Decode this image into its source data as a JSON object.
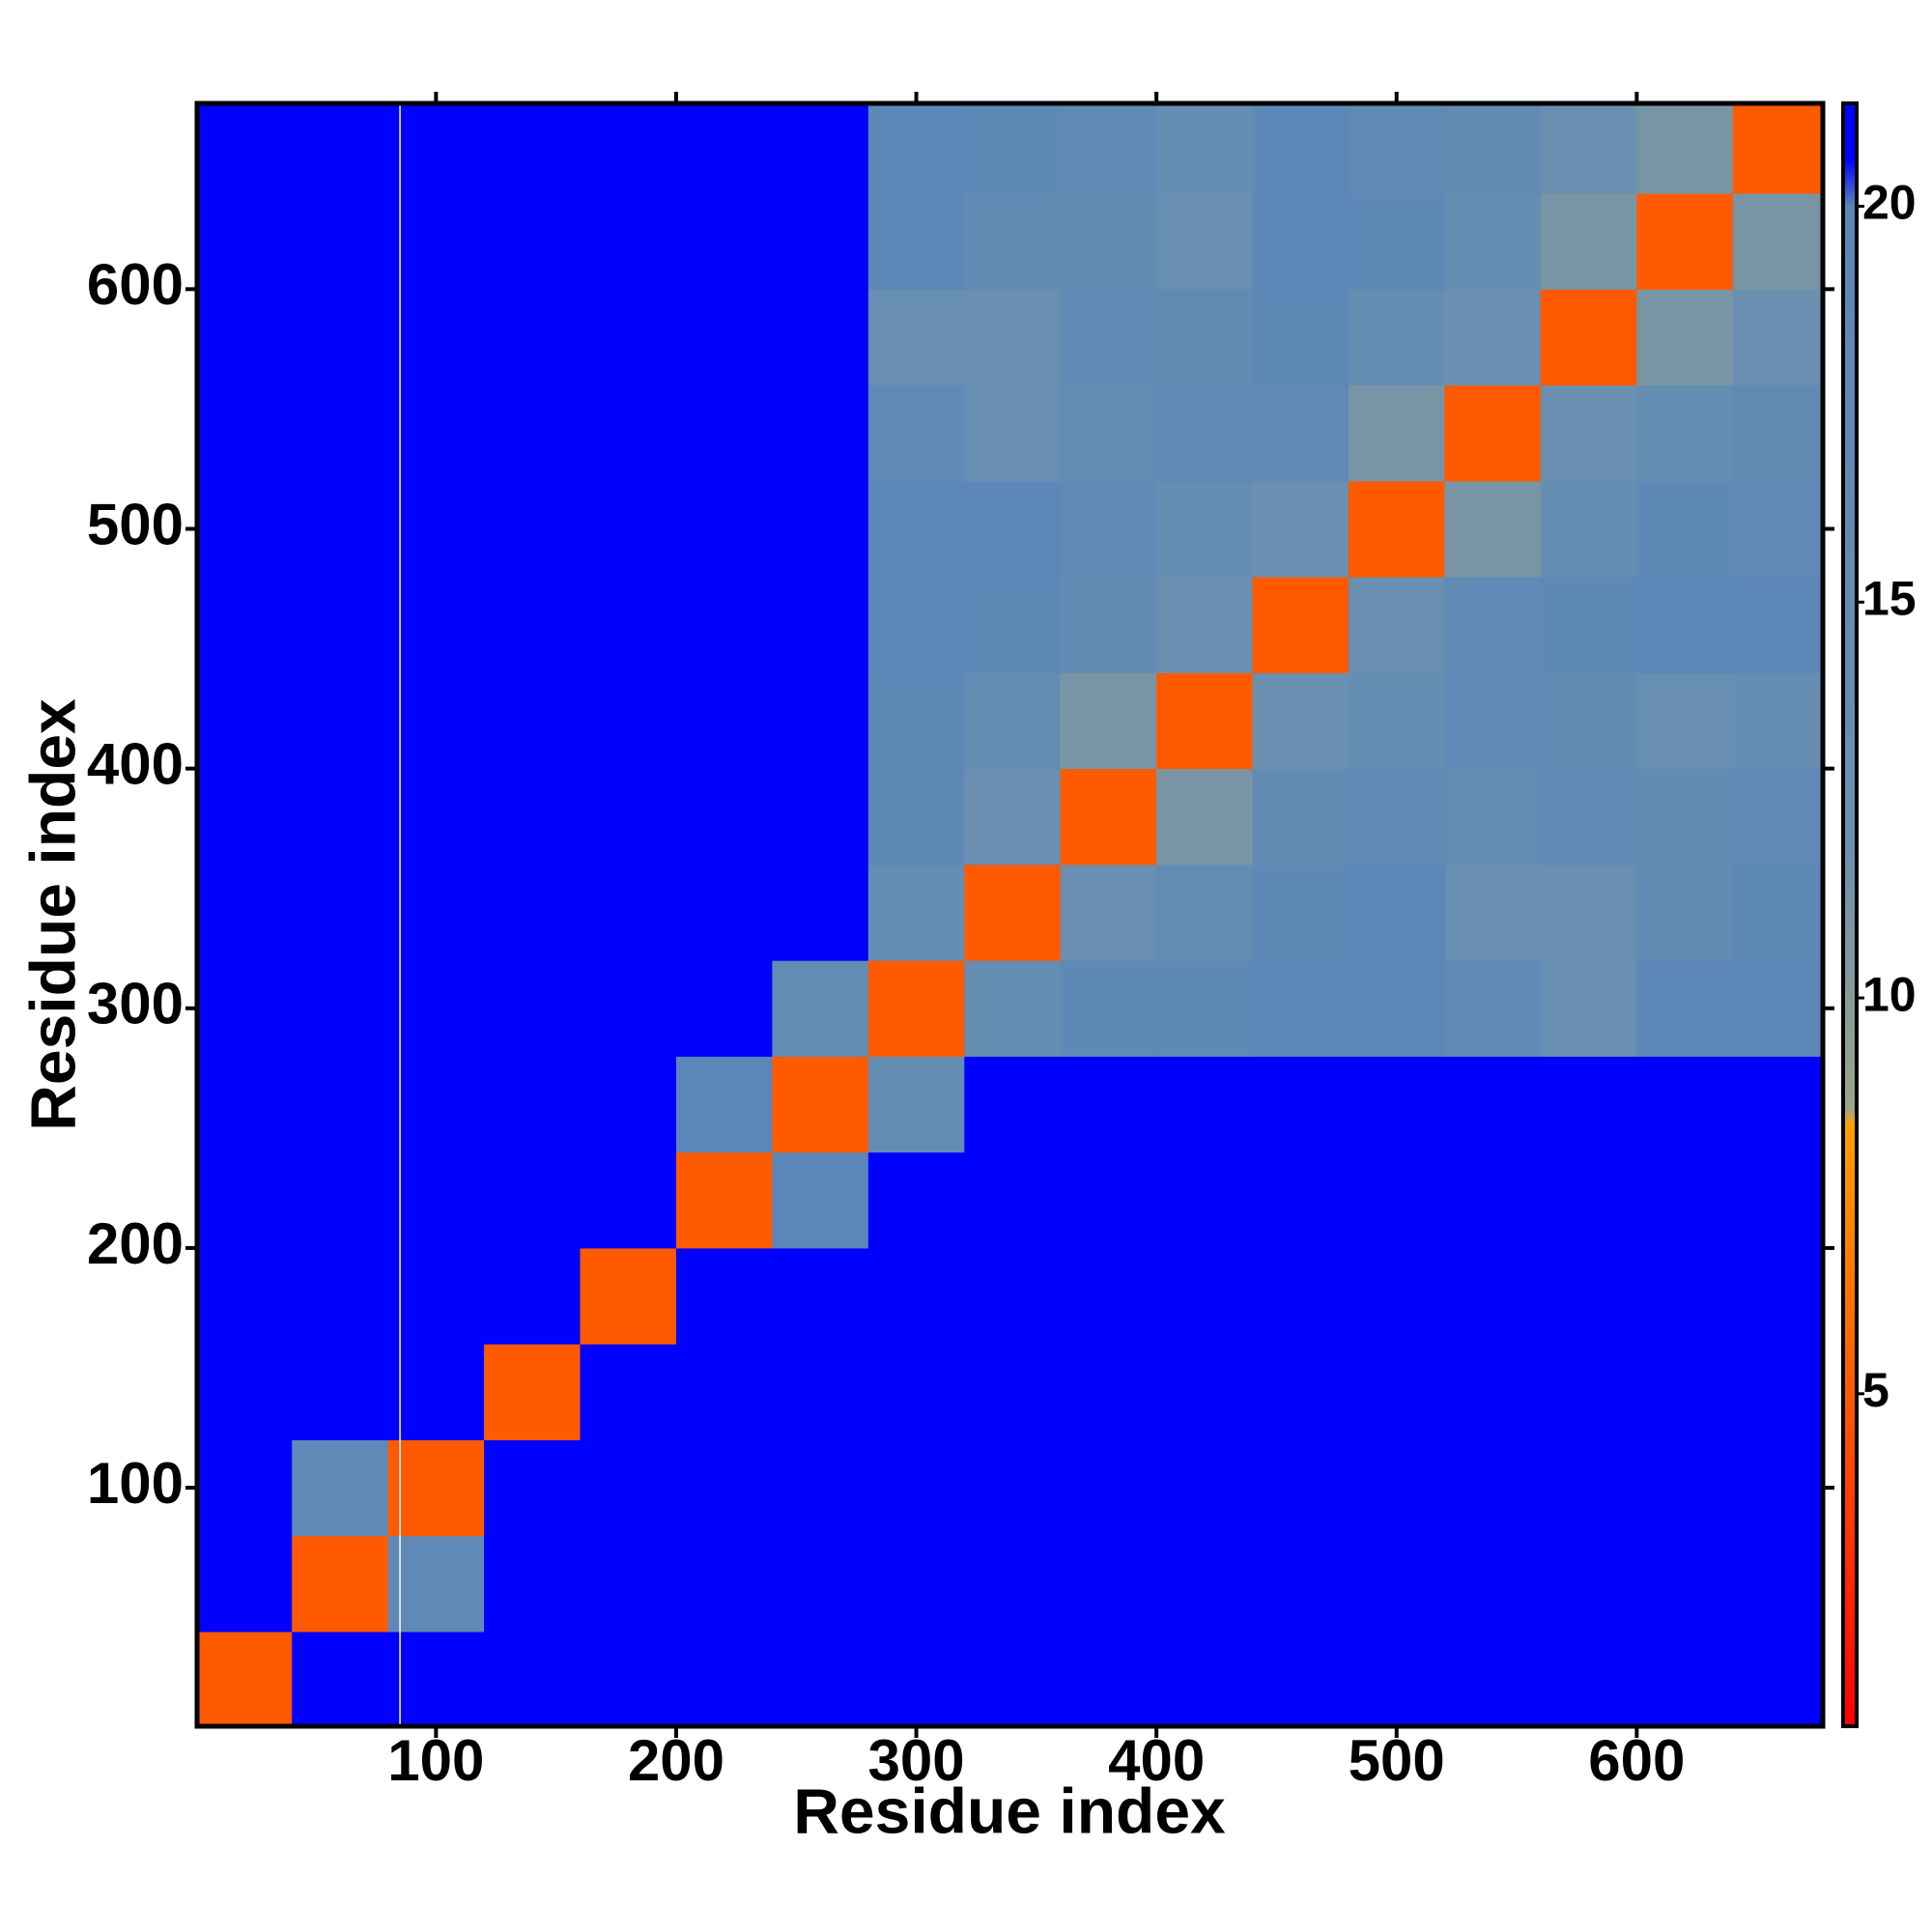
{
  "chart_data": {
    "type": "heatmap",
    "x_label": "Residue index",
    "y_label": "Residue index",
    "bin_edges": [
      0,
      40,
      80,
      120,
      160,
      200,
      240,
      280,
      320,
      360,
      400,
      440,
      480,
      520,
      560,
      600,
      640,
      680
    ],
    "xlim": [
      0.5,
      677.5
    ],
    "ylim": [
      0.5,
      677.5
    ],
    "xticks": [
      100,
      200,
      300,
      400,
      500,
      600
    ],
    "yticks": [
      100,
      200,
      300,
      400,
      500,
      600
    ],
    "gap_x": [
      85
    ],
    "clim": [
      0.8,
      21.3
    ],
    "cticks": [
      5,
      10,
      15,
      20
    ],
    "colorscale": [
      [
        0.8,
        "#ff0000"
      ],
      [
        5,
        "#ff5a00"
      ],
      [
        8.4,
        "#ffa000"
      ],
      [
        8.6,
        "#9aa58a"
      ],
      [
        12,
        "#6a8fb0"
      ],
      [
        20,
        "#5a86b8"
      ],
      [
        20.6,
        "#0000ff"
      ],
      [
        21.3,
        "#0000ff"
      ]
    ],
    "values": [
      [
        5,
        25,
        25,
        25,
        25,
        25,
        25,
        25,
        25,
        25,
        25,
        25,
        25,
        25,
        25,
        25,
        25
      ],
      [
        25,
        5,
        17,
        25,
        25,
        25,
        25,
        25,
        25,
        25,
        25,
        25,
        25,
        25,
        25,
        25,
        25
      ],
      [
        25,
        17,
        5,
        25,
        25,
        25,
        25,
        25,
        25,
        25,
        25,
        25,
        25,
        25,
        25,
        25,
        25
      ],
      [
        25,
        25,
        25,
        5,
        25,
        25,
        25,
        25,
        25,
        25,
        25,
        25,
        25,
        25,
        25,
        25,
        25
      ],
      [
        25,
        25,
        25,
        25,
        5,
        25,
        25,
        25,
        25,
        25,
        25,
        25,
        25,
        25,
        25,
        25,
        25
      ],
      [
        25,
        25,
        25,
        25,
        25,
        5,
        20,
        25,
        25,
        25,
        25,
        25,
        25,
        25,
        25,
        25,
        25
      ],
      [
        25,
        25,
        25,
        25,
        25,
        20,
        5,
        15,
        22,
        22,
        22,
        22,
        22,
        22,
        22,
        22,
        22
      ],
      [
        25,
        25,
        25,
        25,
        25,
        25,
        15,
        5,
        14,
        18,
        18,
        20,
        20,
        17,
        13,
        19,
        19
      ],
      [
        25,
        25,
        25,
        25,
        25,
        25,
        22,
        14,
        5,
        12,
        15,
        18,
        19,
        13,
        12,
        16,
        18
      ],
      [
        25,
        25,
        25,
        25,
        25,
        25,
        22,
        18,
        12,
        5,
        11,
        16,
        17,
        15,
        17,
        16,
        17
      ],
      [
        25,
        25,
        25,
        25,
        25,
        25,
        22,
        18,
        15,
        11,
        5,
        12,
        14,
        17,
        16,
        13,
        14
      ],
      [
        25,
        25,
        25,
        25,
        25,
        25,
        22,
        20,
        18,
        16,
        12,
        5,
        12,
        17,
        18,
        19,
        19
      ],
      [
        25,
        25,
        25,
        25,
        25,
        25,
        22,
        20,
        19,
        17,
        14,
        12,
        5,
        11,
        14,
        18,
        17
      ],
      [
        25,
        25,
        25,
        25,
        25,
        25,
        22,
        17,
        13,
        15,
        17,
        17,
        11,
        5,
        12,
        14,
        16
      ],
      [
        25,
        25,
        25,
        25,
        25,
        25,
        22,
        13,
        12,
        17,
        16,
        18,
        14,
        12,
        5,
        11,
        12
      ],
      [
        25,
        25,
        25,
        25,
        25,
        25,
        22,
        19,
        16,
        16,
        13,
        19,
        18,
        14,
        11,
        5,
        11
      ],
      [
        25,
        25,
        25,
        25,
        25,
        25,
        22,
        19,
        18,
        17,
        14,
        19,
        17,
        16,
        12,
        11,
        5
      ]
    ]
  }
}
